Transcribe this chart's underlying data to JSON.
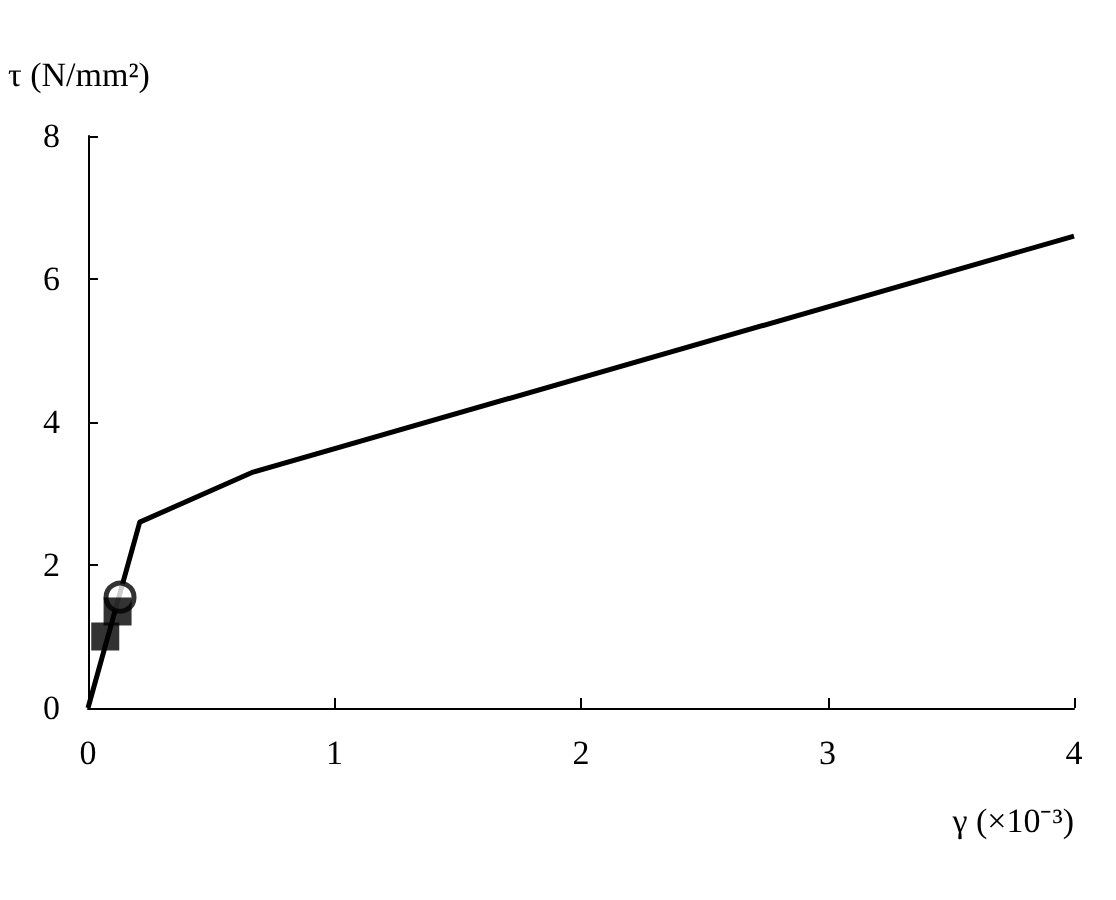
{
  "chart_data": {
    "type": "line",
    "xlabel": "γ (×10⁻³)",
    "ylabel": "τ (N/mm²)",
    "xlim": [
      0,
      4
    ],
    "xticks": [
      0,
      1,
      2,
      3,
      4
    ],
    "ylim": [
      0,
      8
    ],
    "yticks": [
      0,
      2,
      4,
      6,
      8
    ],
    "grid": false,
    "series": [
      {
        "color": "#000000",
        "marker": "none",
        "line_style": "solid",
        "x": [
          0,
          0.21,
          0.67,
          4
        ],
        "values": [
          0,
          2.6,
          3.3,
          6.6
        ]
      },
      {
        "type": "scatter",
        "color": "#000000",
        "marker": "circle",
        "x": [
          0.13
        ],
        "values": [
          1.55
        ]
      },
      {
        "type": "scatter",
        "color": "#000000",
        "marker": "square",
        "x": [
          0.07,
          0.12
        ],
        "values": [
          1.0,
          1.35
        ]
      }
    ]
  }
}
